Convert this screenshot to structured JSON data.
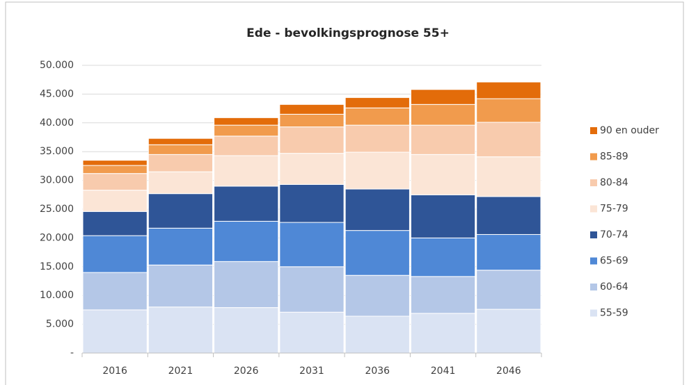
{
  "chart_data": {
    "type": "stacked_bar",
    "title": "Ede - bevolkingsprognose 55+",
    "categories": [
      "2016",
      "2021",
      "2026",
      "2031",
      "2036",
      "2041",
      "2046"
    ],
    "series": [
      {
        "name": "55-59",
        "color": "#dae3f3",
        "values": [
          7500,
          8000,
          7900,
          7100,
          6400,
          6900,
          7600
        ]
      },
      {
        "name": "60-64",
        "color": "#b4c7e7",
        "values": [
          6500,
          7300,
          8000,
          7900,
          7100,
          6400,
          6800
        ]
      },
      {
        "name": "65-69",
        "color": "#4f88d6",
        "values": [
          6400,
          6400,
          7000,
          7700,
          7800,
          6700,
          6200
        ]
      },
      {
        "name": "70-74",
        "color": "#2f5597",
        "values": [
          4200,
          6000,
          6100,
          6600,
          7200,
          7500,
          6600
        ]
      },
      {
        "name": "75-79",
        "color": "#fbe5d6",
        "values": [
          3700,
          3800,
          5300,
          5400,
          6400,
          7000,
          6900
        ]
      },
      {
        "name": "80-84",
        "color": "#f8cbad",
        "values": [
          2900,
          3000,
          3400,
          4600,
          4700,
          5100,
          6000
        ]
      },
      {
        "name": "85-89",
        "color": "#f19b4d",
        "values": [
          1400,
          1700,
          1900,
          2200,
          3000,
          3600,
          4100
        ]
      },
      {
        "name": "90 en ouder",
        "color": "#e36c0a",
        "values": [
          900,
          1100,
          1300,
          1700,
          1800,
          2600,
          2900
        ]
      }
    ],
    "ylim": [
      0,
      50000
    ],
    "yticks": [
      {
        "value": 0,
        "label": "-"
      },
      {
        "value": 5000,
        "label": "5.000"
      },
      {
        "value": 10000,
        "label": "10.000"
      },
      {
        "value": 15000,
        "label": "15.000"
      },
      {
        "value": 20000,
        "label": "20.000"
      },
      {
        "value": 25000,
        "label": "25.000"
      },
      {
        "value": 30000,
        "label": "30.000"
      },
      {
        "value": 35000,
        "label": "35.000"
      },
      {
        "value": 40000,
        "label": "40.000"
      },
      {
        "value": 45000,
        "label": "45.000"
      },
      {
        "value": 50000,
        "label": "50.000"
      }
    ],
    "grid": true,
    "legend": "right"
  }
}
